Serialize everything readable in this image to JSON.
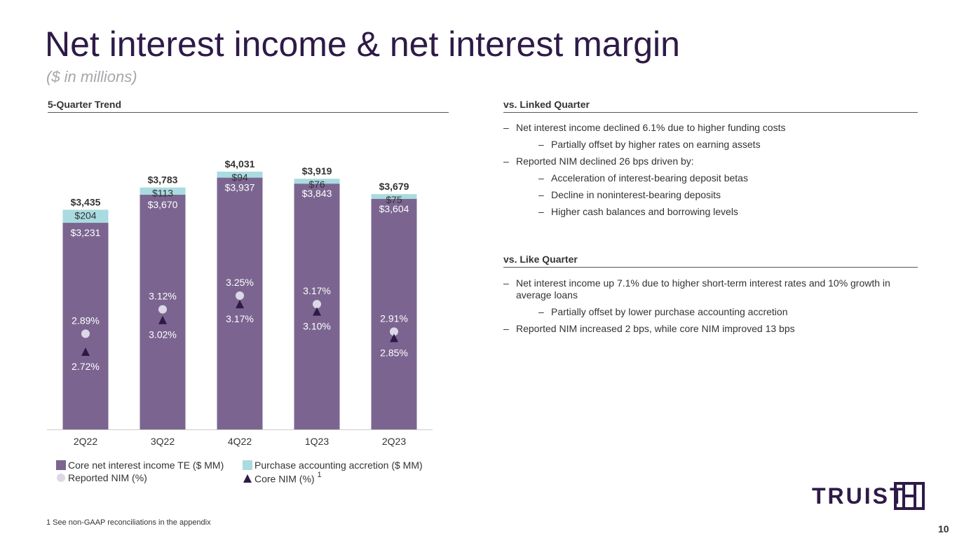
{
  "header": {
    "title": "Net interest income & net interest margin",
    "subtitle": "($ in millions)"
  },
  "chart_section": {
    "heading": "5-Quarter Trend"
  },
  "chart_data": {
    "type": "bar",
    "stacked": true,
    "categories": [
      "2Q22",
      "3Q22",
      "4Q22",
      "1Q23",
      "2Q23"
    ],
    "series": [
      {
        "name": "Core net interest income TE ($ MM)",
        "values": [
          3231,
          3670,
          3937,
          3843,
          3604
        ],
        "labels": [
          "$3,231",
          "$3,670",
          "$3,937",
          "$3,843",
          "$3,604"
        ],
        "color": "#7b6590"
      },
      {
        "name": "Purchase accounting accretion ($ MM)",
        "values": [
          204,
          113,
          94,
          76,
          75
        ],
        "labels": [
          "$204",
          "$113",
          "$94",
          "$76",
          "$75"
        ],
        "color": "#a9dbe0"
      }
    ],
    "totals": {
      "values": [
        3435,
        3783,
        4031,
        3919,
        3679
      ],
      "labels": [
        "$3,435",
        "$3,783",
        "$4,031",
        "$3,919",
        "$3,679"
      ]
    },
    "line_series": [
      {
        "name": "Reported NIM (%)",
        "values": [
          2.89,
          3.12,
          3.25,
          3.17,
          2.91
        ],
        "labels": [
          "2.89%",
          "3.12%",
          "3.25%",
          "3.17%",
          "2.91%"
        ],
        "marker": "circle",
        "color": "#dcd8e8"
      },
      {
        "name": "Core NIM (%)",
        "values": [
          2.72,
          3.02,
          3.17,
          3.1,
          2.85
        ],
        "labels": [
          "2.72%",
          "3.02%",
          "3.17%",
          "3.10%",
          "2.85%"
        ],
        "marker": "triangle",
        "color": "#2e1a47"
      }
    ],
    "legend": {
      "position": "bottom",
      "items": [
        {
          "label": "Core net interest income TE ($ MM)",
          "shape": "square",
          "color": "#7b6590"
        },
        {
          "label": "Purchase accounting accretion ($ MM)",
          "shape": "square",
          "color": "#a9dbe0"
        },
        {
          "label": "Reported NIM (%)",
          "shape": "circle",
          "color": "#dcd8e8"
        },
        {
          "label": "Core NIM (%)",
          "shape": "triangle",
          "color": "#2e1a47",
          "superscript": "1"
        }
      ]
    },
    "ylim": [
      0,
      4500
    ],
    "nim_range": [
      2.0,
      3.8
    ],
    "grid": false
  },
  "linked": {
    "heading": "vs. Linked Quarter",
    "bullets": [
      {
        "level": 1,
        "dash": "–",
        "text": "Net interest income declined 6.1% due to higher funding costs"
      },
      {
        "level": 2,
        "dash": "–",
        "text": "Partially offset by higher rates on earning assets"
      },
      {
        "level": 1,
        "dash": "–",
        "text": "Reported NIM declined 26 bps driven by:"
      },
      {
        "level": 2,
        "dash": "–",
        "text": "Acceleration of interest-bearing deposit betas"
      },
      {
        "level": 2,
        "dash": "–",
        "text": "Decline in noninterest-bearing deposits"
      },
      {
        "level": 2,
        "dash": "–",
        "text": "Higher cash balances and borrowing levels"
      }
    ]
  },
  "like": {
    "heading": "vs. Like Quarter",
    "bullets": [
      {
        "level": 1,
        "dash": "–",
        "text": "Net interest income up 7.1% due to higher short-term interest rates and 10% growth in average loans"
      },
      {
        "level": 2,
        "dash": "–",
        "text": "Partially offset by lower purchase accounting accretion"
      },
      {
        "level": 1,
        "dash": "–",
        "text": "Reported NIM increased 2 bps, while core NIM improved 13 bps"
      }
    ]
  },
  "footnote": "1  See non-GAAP reconciliations in the appendix",
  "page_number": "10",
  "logo": {
    "text": "TRUIST",
    "icon": "truist-hh-logo-icon",
    "color": "#2e1a47"
  }
}
